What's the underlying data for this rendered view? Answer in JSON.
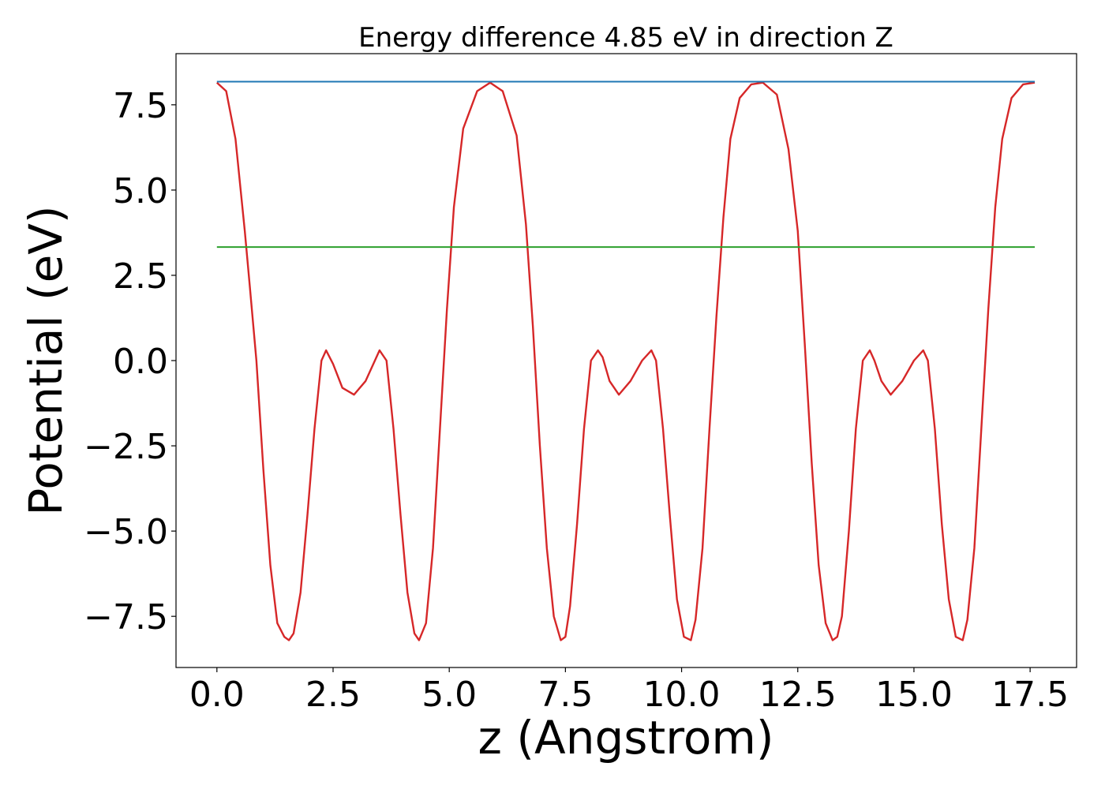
{
  "chart_data": {
    "type": "line",
    "title": "Energy difference 4.85 eV in direction Z",
    "xlabel": "z (Angstrom)",
    "ylabel": "Potential (eV)",
    "xlim": [
      -0.88,
      18.5
    ],
    "ylim": [
      -9.0,
      9.0
    ],
    "x_ticks": [
      0.0,
      2.5,
      5.0,
      7.5,
      10.0,
      12.5,
      15.0,
      17.5
    ],
    "x_tick_labels": [
      "0.0",
      "2.5",
      "5.0",
      "7.5",
      "10.0",
      "12.5",
      "15.0",
      "17.5"
    ],
    "y_ticks": [
      -7.5,
      -5.0,
      -2.5,
      0.0,
      2.5,
      5.0,
      7.5
    ],
    "y_tick_labels": [
      "−7.5",
      "−5.0",
      "−2.5",
      "0.0",
      "2.5",
      "5.0",
      "7.5"
    ],
    "grid": false,
    "legend": null,
    "series": [
      {
        "color": "#d62728",
        "x": [
          0.0,
          0.2,
          0.4,
          0.6,
          0.7,
          0.85,
          1.0,
          1.15,
          1.3,
          1.45,
          1.55,
          1.65,
          1.8,
          1.95,
          2.1,
          2.25,
          2.35,
          2.5,
          2.7,
          2.95,
          3.2,
          3.4,
          3.5,
          3.65,
          3.8,
          3.95,
          4.1,
          4.25,
          4.35,
          4.5,
          4.65,
          4.8,
          4.95,
          5.1,
          5.3,
          5.6,
          5.88,
          6.15,
          6.45,
          6.65,
          6.8,
          6.95,
          7.1,
          7.25,
          7.4,
          7.5,
          7.6,
          7.75,
          7.9,
          8.05,
          8.2,
          8.3,
          8.45,
          8.65,
          8.9,
          9.15,
          9.35,
          9.45,
          9.6,
          9.75,
          9.9,
          10.05,
          10.2,
          10.3,
          10.45,
          10.6,
          10.75,
          10.9,
          11.05,
          11.25,
          11.5,
          11.75,
          12.05,
          12.3,
          12.5,
          12.65,
          12.8,
          12.95,
          13.1,
          13.25,
          13.35,
          13.45,
          13.6,
          13.75,
          13.9,
          14.05,
          14.15,
          14.3,
          14.5,
          14.75,
          15.0,
          15.2,
          15.3,
          15.45,
          15.6,
          15.75,
          15.9,
          16.05,
          16.15,
          16.3,
          16.45,
          16.6,
          16.75,
          16.9,
          17.1,
          17.35,
          17.6
        ],
        "y": [
          8.15,
          7.9,
          6.5,
          3.8,
          2.3,
          0.0,
          -3.2,
          -6.0,
          -7.7,
          -8.1,
          -8.2,
          -8.0,
          -6.8,
          -4.5,
          -2.0,
          0.0,
          0.3,
          -0.1,
          -0.8,
          -1.0,
          -0.6,
          0.0,
          0.3,
          0.0,
          -2.0,
          -4.5,
          -6.8,
          -8.0,
          -8.2,
          -7.7,
          -5.5,
          -2.0,
          1.5,
          4.5,
          6.8,
          7.9,
          8.15,
          7.9,
          6.6,
          4.0,
          1.0,
          -2.5,
          -5.5,
          -7.5,
          -8.2,
          -8.1,
          -7.2,
          -4.8,
          -2.0,
          0.0,
          0.3,
          0.1,
          -0.6,
          -1.0,
          -0.6,
          0.0,
          0.3,
          0.0,
          -2.0,
          -4.6,
          -7.0,
          -8.1,
          -8.2,
          -7.6,
          -5.5,
          -2.0,
          1.3,
          4.2,
          6.5,
          7.7,
          8.1,
          8.15,
          7.8,
          6.2,
          3.8,
          0.5,
          -3.0,
          -6.0,
          -7.7,
          -8.2,
          -8.1,
          -7.5,
          -5.0,
          -2.0,
          0.0,
          0.3,
          0.0,
          -0.6,
          -1.0,
          -0.6,
          0.0,
          0.3,
          0.0,
          -2.0,
          -4.8,
          -7.0,
          -8.1,
          -8.2,
          -7.6,
          -5.5,
          -2.0,
          1.5,
          4.5,
          6.5,
          7.7,
          8.1,
          8.15
        ]
      },
      {
        "color": "#1f77b4",
        "x": [
          0.0,
          17.6
        ],
        "y": [
          8.18,
          8.18
        ]
      },
      {
        "color": "#2ca02c",
        "x": [
          0.0,
          17.6
        ],
        "y": [
          3.33,
          3.33
        ]
      }
    ]
  }
}
